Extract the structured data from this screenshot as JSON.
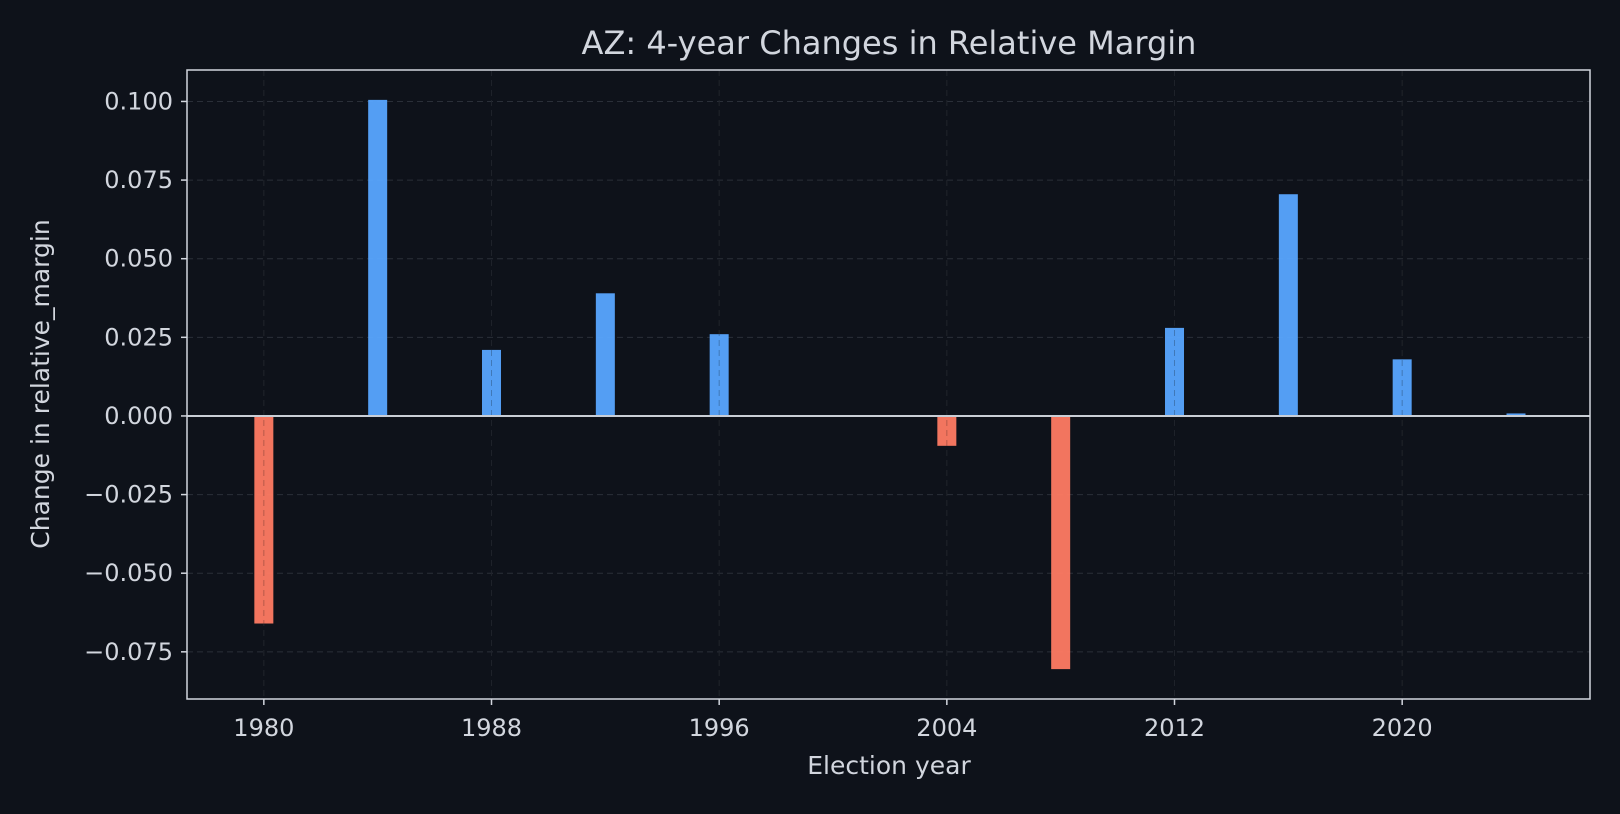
{
  "chart_data": {
    "type": "bar",
    "title": "AZ: 4-year Changes in Relative Margin",
    "xlabel": "Election year",
    "ylabel": "Change in relative_margin",
    "x": [
      1980,
      1984,
      1988,
      1992,
      1996,
      2000,
      2004,
      2008,
      2012,
      2016,
      2020,
      2024
    ],
    "values": [
      -0.066,
      0.1005,
      0.021,
      0.039,
      0.026,
      0.0003,
      -0.0095,
      -0.0805,
      0.028,
      0.0705,
      0.018,
      0.0008
    ],
    "xlim": [
      1977.3,
      2026.6
    ],
    "ylim": [
      -0.09,
      0.11
    ],
    "xticks": [
      1980,
      1988,
      1996,
      2004,
      2012,
      2020
    ],
    "xtick_labels": [
      "1980",
      "1988",
      "1996",
      "2004",
      "2012",
      "2020"
    ],
    "yticks": [
      -0.075,
      -0.05,
      -0.025,
      0.0,
      0.025,
      0.05,
      0.075,
      0.1
    ],
    "ytick_labels": [
      "−0.075",
      "−0.050",
      "−0.025",
      "0.000",
      "0.025",
      "0.050",
      "0.075",
      "0.100"
    ],
    "grid": true,
    "colors": {
      "positive": "#58a6ff",
      "negative": "#ff7b63",
      "background": "#0e121a",
      "axes": "#d2d6de",
      "text": "#d2d6de",
      "grid": "#2a2f38"
    }
  }
}
